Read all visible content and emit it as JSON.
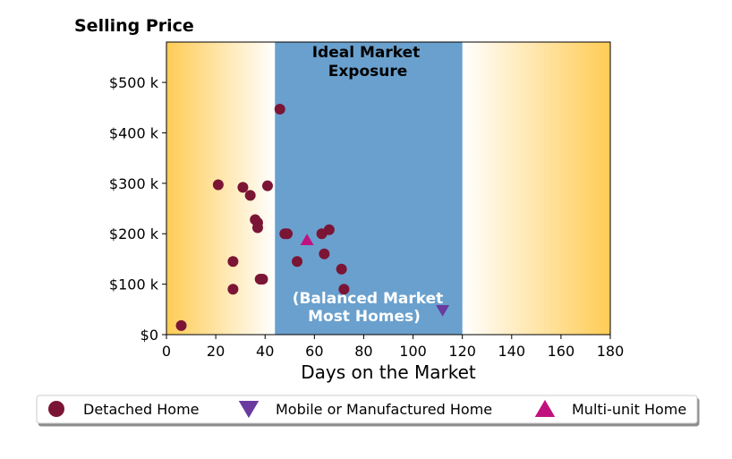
{
  "chart_data": {
    "type": "scatter",
    "title": "Selling Price",
    "xlabel": "Days on the Market",
    "ylabel": "",
    "xlim": [
      0,
      180
    ],
    "ylim": [
      0,
      580000
    ],
    "x_ticks": [
      0,
      20,
      40,
      60,
      80,
      100,
      120,
      140,
      160,
      180
    ],
    "x_tick_labels": [
      "0",
      "20",
      "40",
      "60",
      "80",
      "100",
      "120",
      "140",
      "160",
      "180"
    ],
    "y_ticks": [
      0,
      100000,
      200000,
      300000,
      400000,
      500000
    ],
    "y_tick_labels": [
      "$0",
      "$100 k",
      "$200 k",
      "$300 k",
      "$400 k",
      "$500 k"
    ],
    "grid": false,
    "legend_position": "bottom",
    "highlight_band": {
      "x_range": [
        44,
        120
      ],
      "color": "#6aa0cd",
      "label_top_lines": [
        "Ideal Market",
        "Exposure"
      ],
      "label_bottom_lines": [
        "(Balanced Market",
        "Most Homes)"
      ]
    },
    "gradient_color": "#ffcc55",
    "series": [
      {
        "name": "Detached Home",
        "marker": "circle",
        "color": "#7b1535",
        "points": [
          {
            "x": 6,
            "y": 18000
          },
          {
            "x": 21,
            "y": 297000
          },
          {
            "x": 27,
            "y": 145000
          },
          {
            "x": 27,
            "y": 90000
          },
          {
            "x": 31,
            "y": 292000
          },
          {
            "x": 34,
            "y": 276000
          },
          {
            "x": 36,
            "y": 228000
          },
          {
            "x": 37,
            "y": 222000
          },
          {
            "x": 37,
            "y": 212000
          },
          {
            "x": 38,
            "y": 110000
          },
          {
            "x": 39,
            "y": 110000
          },
          {
            "x": 41,
            "y": 295000
          },
          {
            "x": 46,
            "y": 447000
          },
          {
            "x": 48,
            "y": 200000
          },
          {
            "x": 49,
            "y": 200000
          },
          {
            "x": 53,
            "y": 145000
          },
          {
            "x": 63,
            "y": 200000
          },
          {
            "x": 64,
            "y": 160000
          },
          {
            "x": 66,
            "y": 208000
          },
          {
            "x": 71,
            "y": 130000
          },
          {
            "x": 72,
            "y": 90000
          }
        ]
      },
      {
        "name": "Mobile or Manufactured Home",
        "marker": "triangle-down",
        "color": "#6a3aa0",
        "points": [
          {
            "x": 112,
            "y": 48000
          }
        ]
      },
      {
        "name": "Multi-unit Home",
        "marker": "triangle-up",
        "color": "#c0127f",
        "points": [
          {
            "x": 57,
            "y": 188000
          }
        ]
      }
    ]
  }
}
